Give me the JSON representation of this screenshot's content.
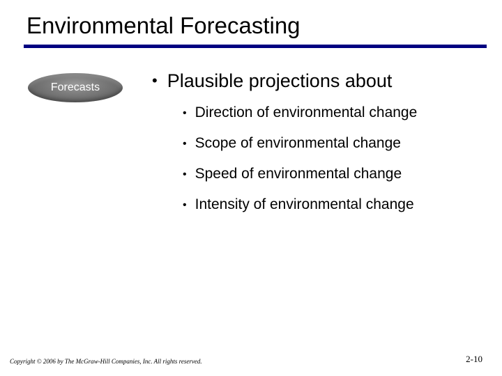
{
  "title": "Environmental Forecasting",
  "badge_label": "Forecasts",
  "main_bullet": "Plausible projections about",
  "sub_bullets": [
    "Direction of environmental change",
    "Scope of environmental change",
    "Speed of environmental change",
    "Intensity of environmental change"
  ],
  "footer_copyright": "Copyright © 2006 by The McGraw-Hill Companies, Inc.  All rights reserved.",
  "footer_page": "2-10",
  "colors": {
    "rule": "#000080",
    "text": "#000000",
    "badge_text": "#ffffff",
    "background": "#ffffff"
  }
}
